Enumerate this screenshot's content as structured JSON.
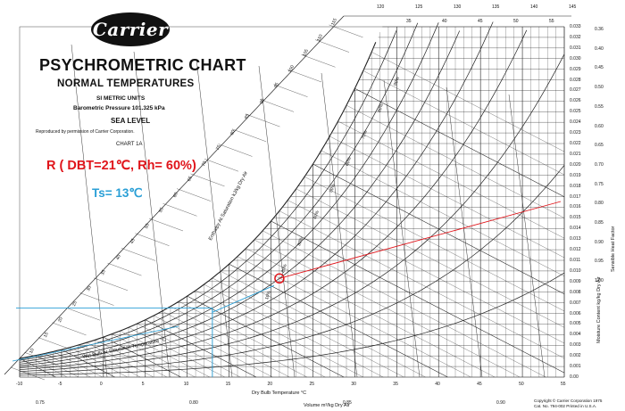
{
  "brand": "Carrier",
  "title": "PSYCHROMETRIC CHART",
  "subtitle": "NORMAL TEMPERATURES",
  "units": "SI METRIC UNITS",
  "pressure": "Barometric Pressure 101.325 kPa",
  "altitude": "SEA LEVEL",
  "reproduced": "Reproduced by permission of Carrier Corporation.",
  "chart_no": "CHART 1A",
  "annotation_state": "R  ( DBT=21℃, Rh= 60%)",
  "annotation_ts": "Ts= 13℃",
  "axes": {
    "dry_bulb_label": "Dry Bulb Temperature °C",
    "volume_label": "Volume m³/kg Dry Air",
    "moisture_label": "Moisture Content kg/kg Dry Air",
    "shf_label": "Sensible Heat Factor",
    "enthalpy_label": "Enthalpy At Saturation kJ/kg Dry Air",
    "saturation_label": "Wet Bulb or Saturation Temperature °C"
  },
  "dry_bulb_ticks": [
    "-10",
    "-5",
    "0",
    "5",
    "10",
    "15",
    "20",
    "25",
    "30",
    "35",
    "40",
    "45",
    "50",
    "55"
  ],
  "moisture_ticks": [
    "0.033",
    "0.032",
    "0.031",
    "0.030",
    "0.029",
    "0.028",
    "0.027",
    "0.026",
    "0.025",
    "0.024",
    "0.023",
    "0.022",
    "0.021",
    "0.020",
    "0.019",
    "0.018",
    "0.017",
    "0.016",
    "0.015",
    "0.014",
    "0.013",
    "0.012",
    "0.011",
    "0.010",
    "0.009",
    "0.008",
    "0.007",
    "0.006",
    "0.005",
    "0.004",
    "0.003",
    "0.002",
    "0.001",
    "0.00"
  ],
  "shf_ticks": [
    "0.36",
    "0.40",
    "0.45",
    "0.50",
    "0.55",
    "0.60",
    "0.65",
    "0.70",
    "0.75",
    "0.80",
    "0.85",
    "0.90",
    "0.95",
    "1.00"
  ],
  "enthalpy_ticks_top": [
    "120",
    "125",
    "130",
    "135",
    "140",
    "145"
  ],
  "enthalpy_ticks_left": [
    "115",
    "110",
    "105",
    "100",
    "95",
    "90",
    "85",
    "80",
    "75",
    "70",
    "65",
    "60",
    "55",
    "50",
    "45",
    "40",
    "35",
    "30",
    "25",
    "20",
    "15",
    "10"
  ],
  "volume_ticks": [
    "0.75",
    "0.80",
    "0.85",
    "0.90"
  ],
  "saturation_ticks": [
    "35",
    "40",
    "45",
    "50",
    "55"
  ],
  "rh_ticks": [
    "90%",
    "80%",
    "70%",
    "60%",
    "50%",
    "40%",
    "30%",
    "20%",
    "10%"
  ],
  "copyright_line1": "Copyright © Carrier Corporation 1975",
  "copyright_line2": "Cat. No. 794-002   Printed in U.S.A.",
  "colors": {
    "state_marker": "#e0151b",
    "supply_line": "#2a9fd6",
    "ink": "#222222"
  }
}
